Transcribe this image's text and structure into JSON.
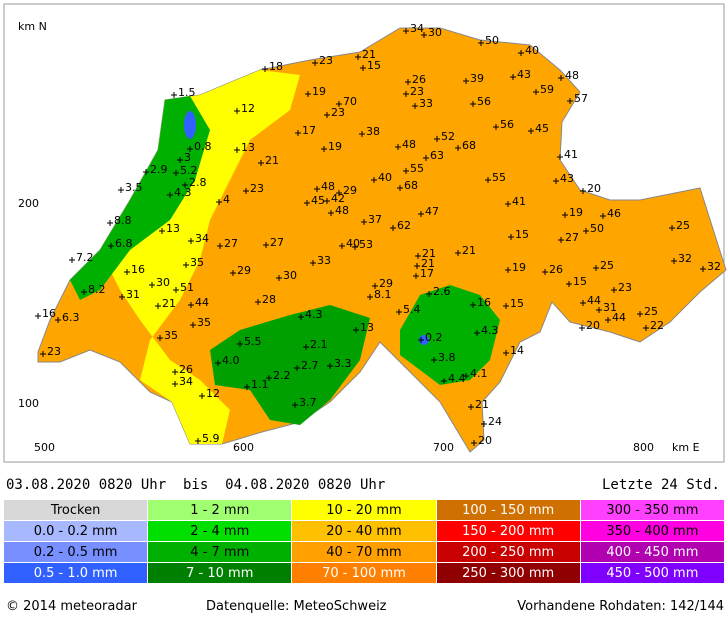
{
  "axis": {
    "y_unit": "km N",
    "x_unit": "km E",
    "y_labels": [
      "200",
      "100"
    ],
    "x_labels": [
      "500",
      "600",
      "700",
      "800"
    ]
  },
  "stations": [
    "34",
    "30",
    "50",
    "40",
    "21",
    "15",
    "23",
    "18",
    "48",
    "26",
    "39",
    "43",
    "23",
    "59",
    "57",
    "19",
    "70",
    "33",
    "56",
    "1.5",
    "12",
    "23",
    "56",
    "45",
    "17",
    "38",
    "0.8",
    "13",
    "52",
    "68",
    "19",
    "48",
    "63",
    "21",
    "3",
    "41",
    "2.9",
    "5.2",
    "55",
    "2.8",
    "55",
    "40",
    "43",
    "48",
    "3.5",
    "23",
    "68",
    "20",
    "4.3",
    "29",
    "45",
    "42",
    "4",
    "41",
    "48",
    "8.8",
    "47",
    "19",
    "46",
    "50",
    "37",
    "62",
    "13",
    "25",
    "34",
    "27",
    "27",
    "15",
    "27",
    "40",
    "53",
    "7.2",
    "6.8",
    "21",
    "21",
    "21",
    "33",
    "35",
    "32",
    "32",
    "16",
    "29",
    "19",
    "26",
    "25",
    "30",
    "30",
    "17",
    "15",
    "23",
    "8.2",
    "31",
    "51",
    "29",
    "8.1",
    "2.6",
    "16",
    "21",
    "44",
    "28",
    "15",
    "44",
    "31",
    "44",
    "25",
    "16",
    "6.3",
    "4.3",
    "35",
    "5.4",
    "13",
    "20",
    "22",
    "4.3",
    "35",
    "5.5",
    "2.1",
    "0.2",
    "23",
    "14",
    "3.8",
    "4.0",
    "3.3",
    "2.7",
    "4.1",
    "4.4",
    "26",
    "2.2",
    "34",
    "1.1",
    "12",
    "3.7",
    "21",
    "24",
    "5.9",
    "20"
  ],
  "header": {
    "period": "03.08.2020 0820 Uhr  bis  04.08.2020 0820 Uhr",
    "window": "Letzte 24 Std."
  },
  "legend": {
    "rows": [
      [
        "Trocken",
        "1 - 2 mm",
        "10 - 20 mm",
        "100 - 150 mm",
        "300 - 350 mm"
      ],
      [
        "0.0 - 0.2 mm",
        "2 - 4 mm",
        "20 - 40 mm",
        "150 - 200 mm",
        "350 - 400 mm"
      ],
      [
        "0.2 - 0.5 mm",
        "4 - 7 mm",
        "40 - 70 mm",
        "200 - 250 mm",
        "400 - 450 mm"
      ],
      [
        "0.5 - 1.0 mm",
        "7 - 10 mm",
        "70 - 100 mm",
        "250 - 300 mm",
        "450 - 500 mm"
      ]
    ]
  },
  "footer": {
    "copyright": "© 2014 meteoradar",
    "source": "Datenquelle: MeteoSchweiz",
    "availability": "Vorhandene Rohdaten: 142/144"
  }
}
